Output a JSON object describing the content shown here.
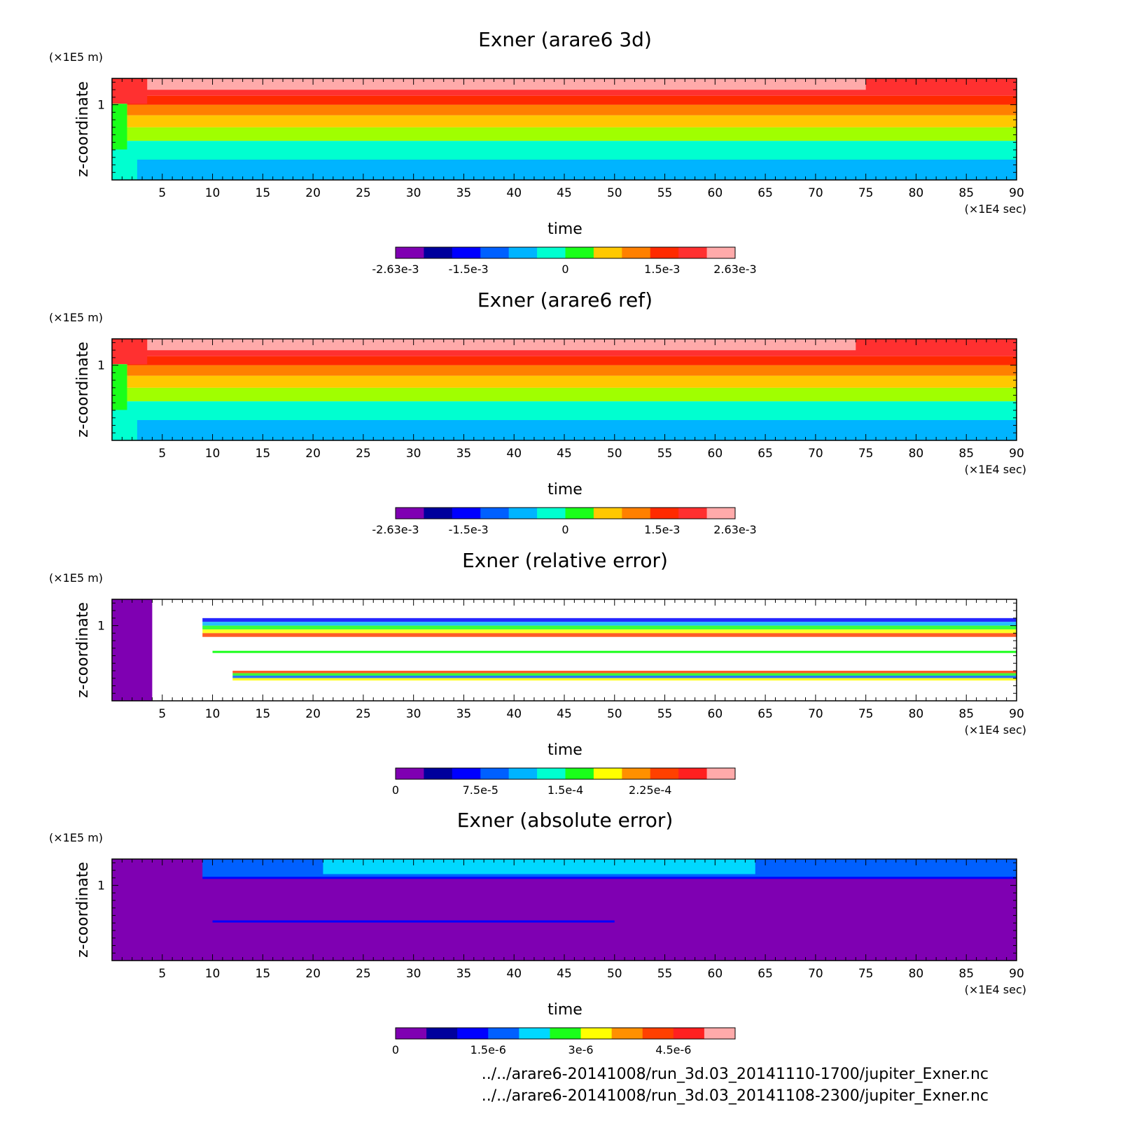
{
  "chart_data": [
    {
      "type": "heatmap",
      "title": "Exner (arare6 3d)",
      "xlabel": "time",
      "ylabel": "z-coordinate",
      "x_unit": "(×1E4 sec)",
      "y_unit": "(×1E5 m)",
      "xlim": [
        0,
        90
      ],
      "ylim": [
        0,
        1.35
      ],
      "x_ticks": [
        "5",
        "10",
        "15",
        "20",
        "25",
        "30",
        "35",
        "40",
        "45",
        "50",
        "55",
        "60",
        "65",
        "70",
        "75",
        "80",
        "85",
        "90"
      ],
      "y_ticks": [
        "1"
      ],
      "colorbar": {
        "colors": [
          "#7f00b2",
          "#00009c",
          "#0000ff",
          "#0060ff",
          "#00b4ff",
          "#00ffd0",
          "#1aff1a",
          "#ffc800",
          "#ff8000",
          "#ff2a00",
          "#ff3030",
          "#ffaaaa"
        ],
        "labels": [
          "-2.63e-3",
          "-1.5e-3",
          "0",
          "1.5e-3",
          "2.63e-3"
        ],
        "label_values": [
          -0.00263,
          -0.0015,
          0,
          0.0015,
          0.00263
        ],
        "range": [
          -0.00263,
          0.00263
        ]
      },
      "layers": [
        {
          "z_bottom": 0.0,
          "z_top": 0.27,
          "color": "#00b4ff"
        },
        {
          "z_bottom": 0.27,
          "z_top": 0.52,
          "color": "#00ffd0"
        },
        {
          "z_bottom": 0.52,
          "z_top": 0.7,
          "color": "#a0ff00"
        },
        {
          "z_bottom": 0.7,
          "z_top": 0.86,
          "color": "#ffc800"
        },
        {
          "z_bottom": 0.86,
          "z_top": 1.0,
          "color": "#ff8000"
        },
        {
          "z_bottom": 1.0,
          "z_top": 1.12,
          "color": "#ff2a00"
        },
        {
          "z_bottom": 1.12,
          "z_top": 1.2,
          "color": "#ff3030"
        },
        {
          "z_bottom": 1.2,
          "z_top": 1.35,
          "color": "#ffaaaa"
        }
      ],
      "pink_region_end_time": 75
    },
    {
      "type": "heatmap",
      "title": "Exner (arare6 ref)",
      "xlabel": "time",
      "ylabel": "z-coordinate",
      "x_unit": "(×1E4 sec)",
      "y_unit": "(×1E5 m)",
      "xlim": [
        0,
        90
      ],
      "ylim": [
        0,
        1.35
      ],
      "x_ticks": [
        "5",
        "10",
        "15",
        "20",
        "25",
        "30",
        "35",
        "40",
        "45",
        "50",
        "55",
        "60",
        "65",
        "70",
        "75",
        "80",
        "85",
        "90"
      ],
      "y_ticks": [
        "1"
      ],
      "colorbar": {
        "colors": [
          "#7f00b2",
          "#00009c",
          "#0000ff",
          "#0060ff",
          "#00b4ff",
          "#00ffd0",
          "#1aff1a",
          "#ffc800",
          "#ff8000",
          "#ff2a00",
          "#ff3030",
          "#ffaaaa"
        ],
        "labels": [
          "-2.63e-3",
          "-1.5e-3",
          "0",
          "1.5e-3",
          "2.63e-3"
        ],
        "label_values": [
          -0.00263,
          -0.0015,
          0,
          0.0015,
          0.00263
        ],
        "range": [
          -0.00263,
          0.00263
        ]
      },
      "layers": [
        {
          "z_bottom": 0.0,
          "z_top": 0.27,
          "color": "#00b4ff"
        },
        {
          "z_bottom": 0.27,
          "z_top": 0.52,
          "color": "#00ffd0"
        },
        {
          "z_bottom": 0.52,
          "z_top": 0.7,
          "color": "#a0ff00"
        },
        {
          "z_bottom": 0.7,
          "z_top": 0.86,
          "color": "#ffc800"
        },
        {
          "z_bottom": 0.86,
          "z_top": 1.0,
          "color": "#ff8000"
        },
        {
          "z_bottom": 1.0,
          "z_top": 1.12,
          "color": "#ff2a00"
        },
        {
          "z_bottom": 1.12,
          "z_top": 1.2,
          "color": "#ff3030"
        },
        {
          "z_bottom": 1.2,
          "z_top": 1.35,
          "color": "#ffaaaa"
        }
      ],
      "pink_region_end_time": 74
    },
    {
      "type": "heatmap",
      "title": "Exner (relative error)",
      "xlabel": "time",
      "ylabel": "z-coordinate",
      "x_unit": "(×1E4 sec)",
      "y_unit": "(×1E5 m)",
      "xlim": [
        0,
        90
      ],
      "ylim": [
        0,
        1.35
      ],
      "x_ticks": [
        "5",
        "10",
        "15",
        "20",
        "25",
        "30",
        "35",
        "40",
        "45",
        "50",
        "55",
        "60",
        "65",
        "70",
        "75",
        "80",
        "85",
        "90"
      ],
      "y_ticks": [
        "1"
      ],
      "colorbar": {
        "colors": [
          "#7f00b2",
          "#00009c",
          "#0000ff",
          "#0060ff",
          "#00b4ff",
          "#00ffd0",
          "#1aff1a",
          "#ffff00",
          "#ff9000",
          "#ff4000",
          "#ff2020",
          "#ffaaaa"
        ],
        "labels": [
          "0",
          "7.5e-5",
          "1.5e-4",
          "2.25e-4"
        ],
        "label_values": [
          0,
          7.5e-05,
          0.00015,
          0.000225
        ],
        "range": [
          0,
          0.0003
        ]
      },
      "features": [
        {
          "kind": "fill",
          "t0": 0,
          "t1": 4,
          "z0": 0,
          "z1": 1.35,
          "color": "#7f00b2"
        },
        {
          "kind": "band",
          "t0": 9,
          "t1": 90,
          "z0": 0.85,
          "z1": 1.1,
          "colors": [
            "#0000ff",
            "#00b4ff",
            "#1aff1a",
            "#ffff00",
            "#ff4000"
          ]
        },
        {
          "kind": "band",
          "t0": 12,
          "t1": 90,
          "z0": 0.27,
          "z1": 0.4,
          "colors": [
            "#ff4000",
            "#1aff1a",
            "#0060ff",
            "#ffff00"
          ]
        },
        {
          "kind": "line",
          "t0": 10,
          "t1": 90,
          "z": 0.65,
          "color": "#1aff1a"
        }
      ]
    },
    {
      "type": "heatmap",
      "title": "Exner (absolute error)",
      "xlabel": "time",
      "ylabel": "z-coordinate",
      "x_unit": "(×1E4 sec)",
      "y_unit": "(×1E5 m)",
      "xlim": [
        0,
        90
      ],
      "ylim": [
        0,
        1.35
      ],
      "x_ticks": [
        "5",
        "10",
        "15",
        "20",
        "25",
        "30",
        "35",
        "40",
        "45",
        "50",
        "55",
        "60",
        "65",
        "70",
        "75",
        "80",
        "85",
        "90"
      ],
      "y_ticks": [
        "1"
      ],
      "colorbar": {
        "colors": [
          "#7f00b2",
          "#00009c",
          "#0000ff",
          "#0060ff",
          "#00d8ff",
          "#1aff1a",
          "#ffff00",
          "#ff9000",
          "#ff4000",
          "#ff2020",
          "#ffaaaa"
        ],
        "labels": [
          "0",
          "1.5e-6",
          "3e-6",
          "4.5e-6"
        ],
        "label_values": [
          0,
          1.5e-06,
          3e-06,
          4.5e-06
        ],
        "range": [
          0,
          5.5e-06
        ]
      },
      "features": [
        {
          "kind": "fill",
          "t0": 0,
          "t1": 90,
          "z0": 0,
          "z1": 1.35,
          "color": "#7f00b2"
        },
        {
          "kind": "fill",
          "t0": 9,
          "t1": 90,
          "z0": 1.1,
          "z1": 1.35,
          "color": "#0060ff"
        },
        {
          "kind": "fill",
          "t0": 21,
          "t1": 64,
          "z0": 1.15,
          "z1": 1.35,
          "color": "#00d8ff"
        },
        {
          "kind": "line",
          "t0": 9,
          "t1": 90,
          "z": 1.1,
          "color": "#0000ff"
        },
        {
          "kind": "line",
          "t0": 10,
          "t1": 50,
          "z": 0.52,
          "color": "#0000ff"
        }
      ]
    }
  ],
  "footer": {
    "file_1": "../../arare6-20141008/run_3d.03_20141110-1700/jupiter_Exner.nc",
    "file_2": "../../arare6-20141008/run_3d.03_20141108-2300/jupiter_Exner.nc"
  }
}
